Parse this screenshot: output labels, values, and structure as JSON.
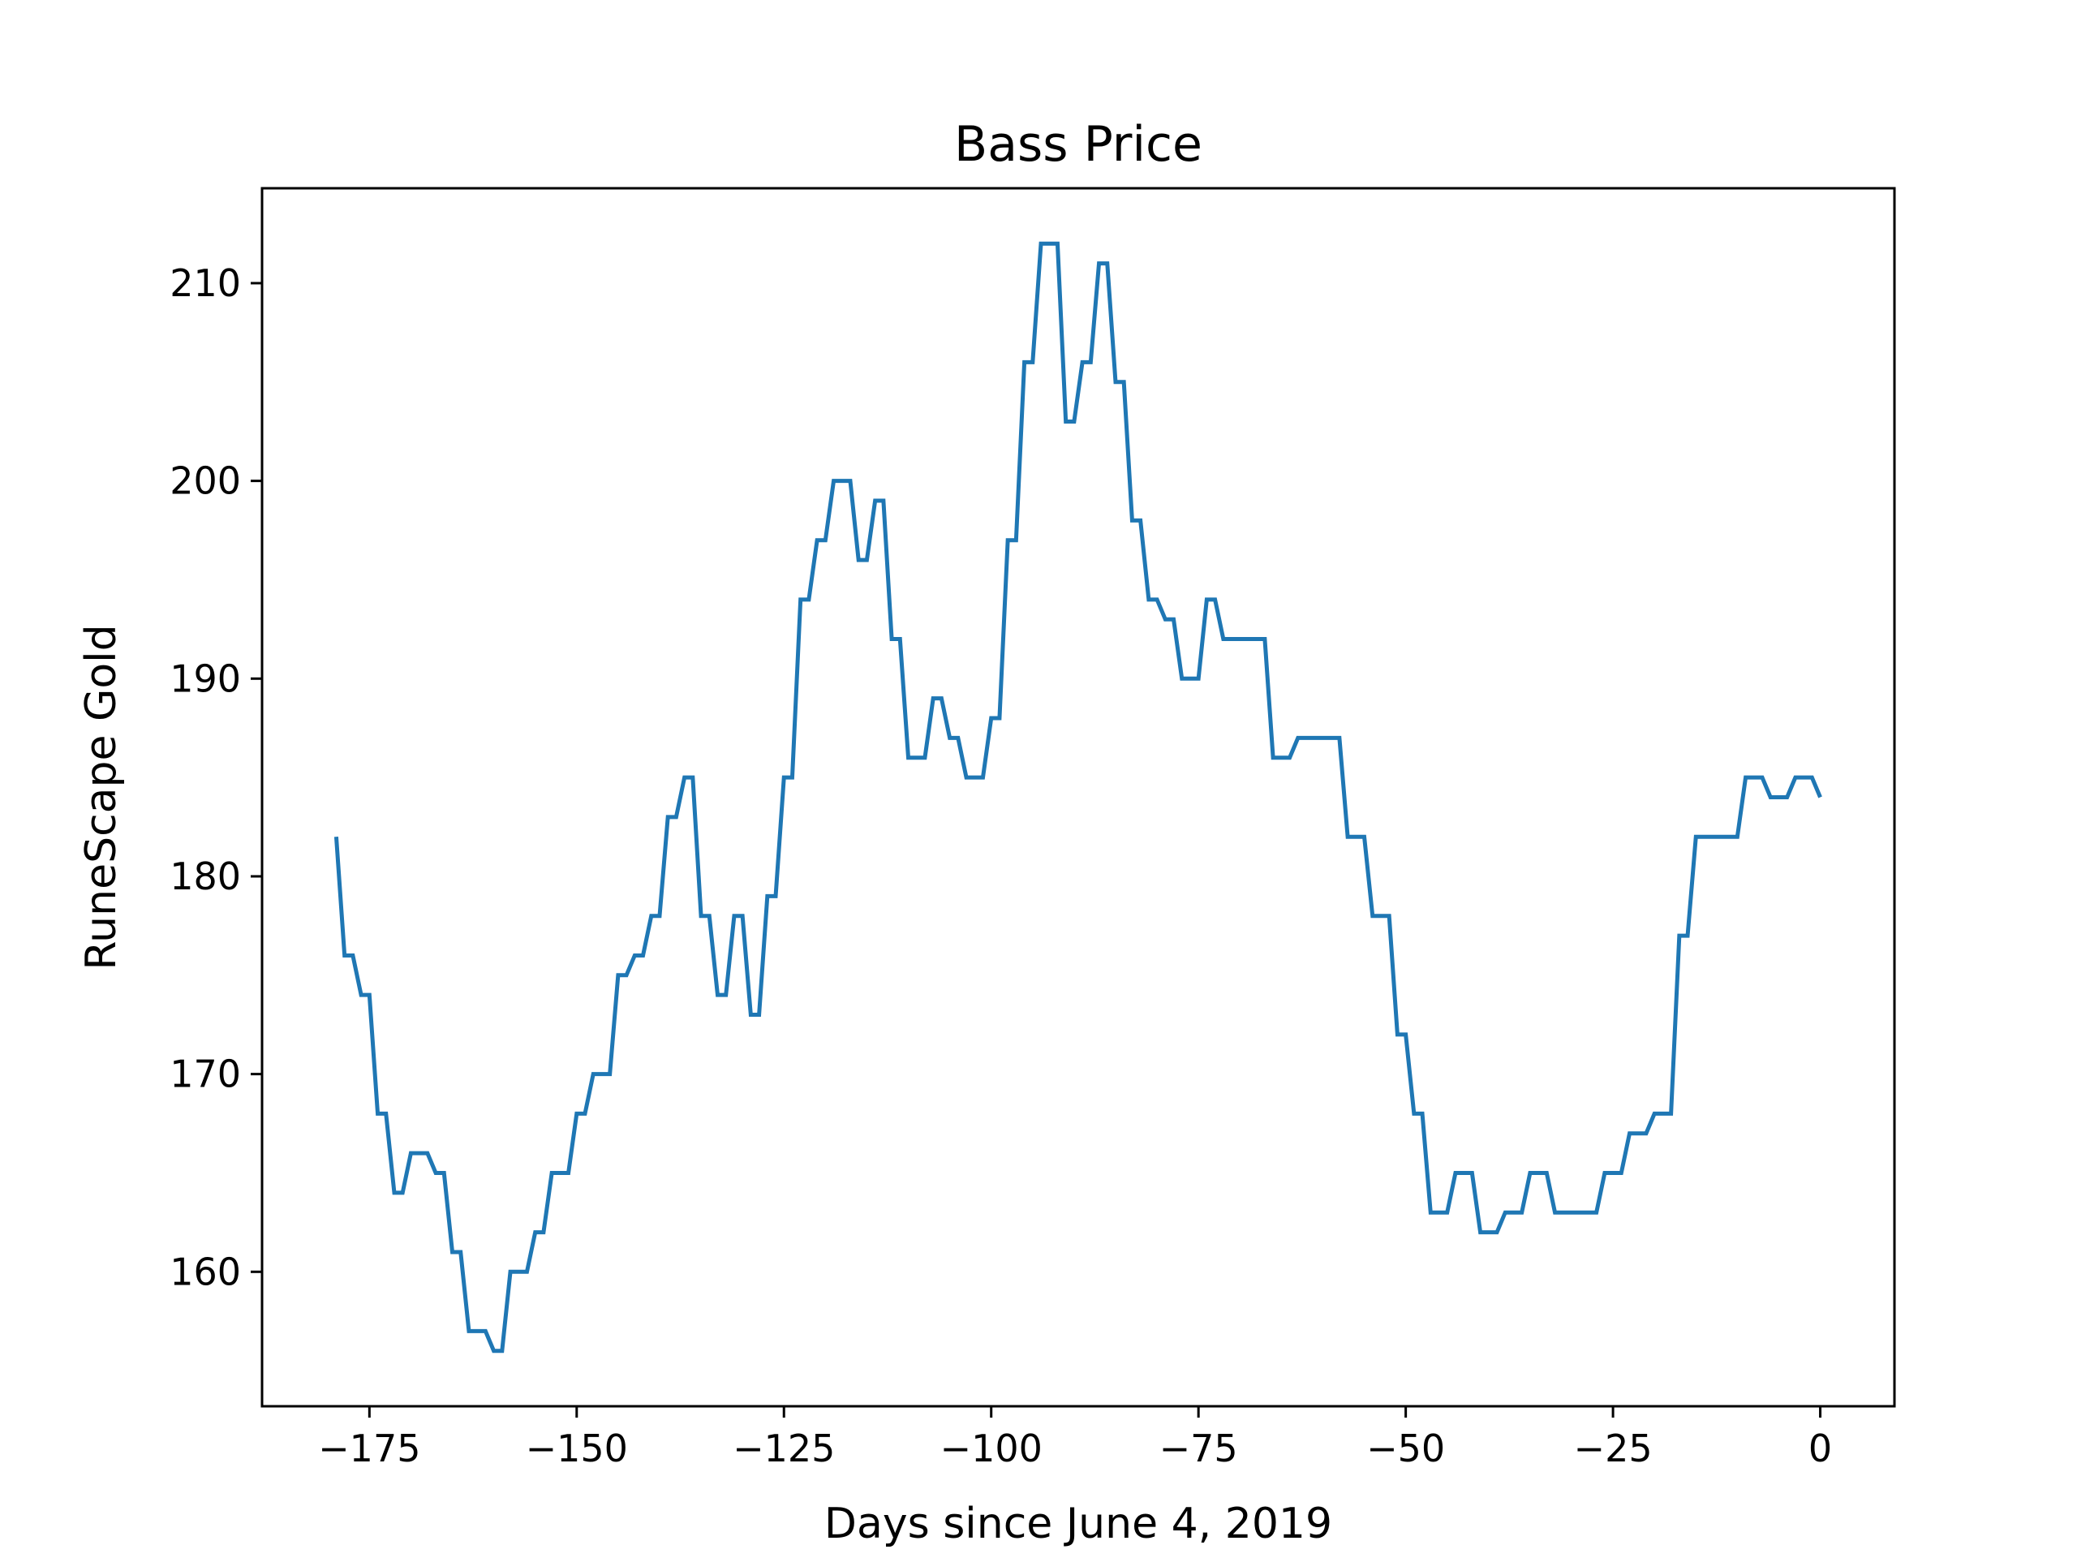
{
  "chart_data": {
    "type": "line",
    "title": "Bass Price",
    "xlabel": "Days since June 4, 2019",
    "ylabel": "RuneScape Gold",
    "xlim": [
      -187.95,
      8.95
    ],
    "ylim": [
      153.2,
      214.8
    ],
    "x_ticks": [
      -175,
      -150,
      -125,
      -100,
      -75,
      -50,
      -25,
      0
    ],
    "x_tick_labels": [
      "−175",
      "−150",
      "−125",
      "−100",
      "−75",
      "−50",
      "−25",
      "0"
    ],
    "y_ticks": [
      160,
      170,
      180,
      190,
      200,
      210
    ],
    "y_tick_labels": [
      "160",
      "170",
      "180",
      "190",
      "200",
      "210"
    ],
    "grid": false,
    "series": [
      {
        "color": "#1f77b4",
        "x": [
          -179,
          -178,
          -177,
          -176,
          -175,
          -174,
          -173,
          -172,
          -171,
          -170,
          -169,
          -168,
          -167,
          -166,
          -165,
          -164,
          -163,
          -162,
          -161,
          -160,
          -159,
          -158,
          -157,
          -156,
          -155,
          -154,
          -153,
          -152,
          -151,
          -150,
          -149,
          -148,
          -147,
          -146,
          -145,
          -144,
          -143,
          -142,
          -141,
          -140,
          -139,
          -138,
          -137,
          -136,
          -135,
          -134,
          -133,
          -132,
          -131,
          -130,
          -129,
          -128,
          -127,
          -126,
          -125,
          -124,
          -123,
          -122,
          -121,
          -120,
          -119,
          -118,
          -117,
          -116,
          -115,
          -114,
          -113,
          -112,
          -111,
          -110,
          -109,
          -108,
          -107,
          -106,
          -105,
          -104,
          -103,
          -102,
          -101,
          -100,
          -99,
          -98,
          -97,
          -96,
          -95,
          -94,
          -93,
          -92,
          -91,
          -90,
          -89,
          -88,
          -87,
          -86,
          -85,
          -84,
          -83,
          -82,
          -81,
          -80,
          -79,
          -78,
          -77,
          -76,
          -75,
          -74,
          -73,
          -72,
          -71,
          -70,
          -69,
          -68,
          -67,
          -66,
          -65,
          -64,
          -63,
          -62,
          -61,
          -60,
          -59,
          -58,
          -57,
          -56,
          -55,
          -54,
          -53,
          -52,
          -51,
          -50,
          -49,
          -48,
          -47,
          -46,
          -45,
          -44,
          -43,
          -42,
          -41,
          -40,
          -39,
          -38,
          -37,
          -36,
          -35,
          -34,
          -33,
          -32,
          -31,
          -30,
          -29,
          -28,
          -27,
          -26,
          -25,
          -24,
          -23,
          -22,
          -21,
          -20,
          -19,
          -18,
          -17,
          -16,
          -15,
          -14,
          -13,
          -12,
          -11,
          -10,
          -9,
          -8,
          -7,
          -6,
          -5,
          -4,
          -3,
          -2,
          -1,
          0
        ],
        "y": [
          182,
          176,
          176,
          174,
          174,
          168,
          168,
          164,
          164,
          166,
          166,
          166,
          165,
          165,
          161,
          161,
          157,
          157,
          157,
          156,
          156,
          160,
          160,
          160,
          162,
          162,
          165,
          165,
          165,
          168,
          168,
          170,
          170,
          170,
          175,
          175,
          176,
          176,
          178,
          178,
          183,
          183,
          185,
          185,
          178,
          178,
          174,
          174,
          178,
          178,
          173,
          173,
          179,
          179,
          185,
          185,
          194,
          194,
          197,
          197,
          200,
          200,
          200,
          196,
          196,
          199,
          199,
          192,
          192,
          186,
          186,
          186,
          189,
          189,
          187,
          187,
          185,
          185,
          185,
          188,
          188,
          197,
          197,
          206,
          206,
          212,
          212,
          212,
          203,
          203,
          206,
          206,
          211,
          211,
          205,
          205,
          198,
          198,
          194,
          194,
          193,
          193,
          190,
          190,
          190,
          194,
          194,
          192,
          192,
          192,
          192,
          192,
          192,
          186,
          186,
          186,
          187,
          187,
          187,
          187,
          187,
          187,
          182,
          182,
          182,
          178,
          178,
          178,
          172,
          172,
          168,
          168,
          163,
          163,
          163,
          165,
          165,
          165,
          162,
          162,
          162,
          163,
          163,
          163,
          165,
          165,
          165,
          163,
          163,
          163,
          163,
          163,
          163,
          165,
          165,
          165,
          167,
          167,
          167,
          168,
          168,
          168,
          177,
          177,
          182,
          182,
          182,
          182,
          182,
          182,
          185,
          185,
          185,
          184,
          184,
          184,
          185,
          185,
          185,
          184
        ]
      }
    ]
  }
}
